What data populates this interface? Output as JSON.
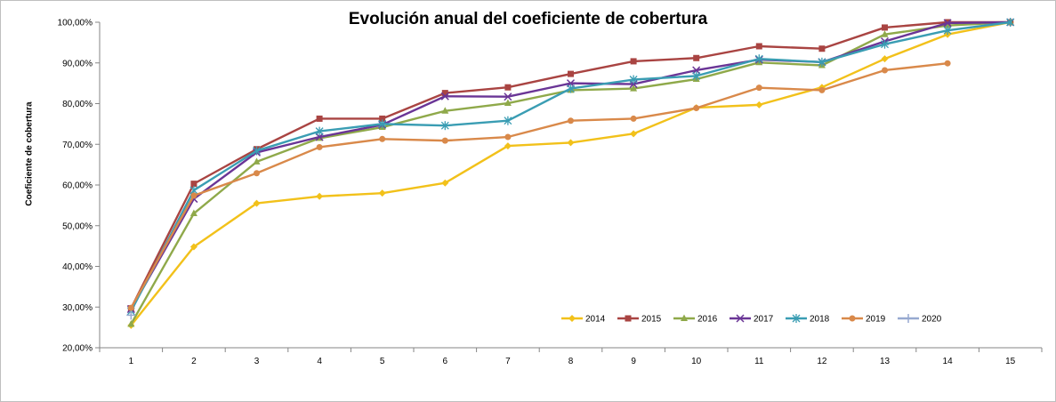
{
  "chart_data": {
    "type": "line",
    "title": "Evolución anual del coeficiente de cobertura",
    "xlabel": "",
    "ylabel": "Coeficiente de cobertura",
    "x": [
      1,
      2,
      3,
      4,
      5,
      6,
      7,
      8,
      9,
      10,
      11,
      12,
      13,
      14,
      15
    ],
    "x_tick_labels": [
      "1",
      "2",
      "3",
      "4",
      "5",
      "6",
      "7",
      "8",
      "9",
      "10",
      "11",
      "12",
      "13",
      "14",
      "15"
    ],
    "y_tick_labels": [
      "20,00%",
      "30,00%",
      "40,00%",
      "50,00%",
      "60,00%",
      "70,00%",
      "80,00%",
      "90,00%",
      "100,00%"
    ],
    "y_ticks": [
      20,
      30,
      40,
      50,
      60,
      70,
      80,
      90,
      100
    ],
    "ylim": [
      20,
      100
    ],
    "y_unit": "percent",
    "grid": false,
    "legend_position": "bottom-right",
    "series": [
      {
        "name": "2014",
        "color": "#F2C11A",
        "marker": "diamond",
        "values": [
          25.5,
          44.8,
          55.5,
          57.2,
          58.0,
          60.5,
          69.6,
          70.4,
          72.6,
          79.0,
          79.7,
          84.0,
          91.0,
          97.0,
          100.0
        ]
      },
      {
        "name": "2015",
        "color": "#A94442",
        "marker": "square",
        "values": [
          29.7,
          60.3,
          68.8,
          76.3,
          76.3,
          82.6,
          84.0,
          87.3,
          90.4,
          91.2,
          94.1,
          93.5,
          98.7,
          100.0,
          100.0
        ]
      },
      {
        "name": "2016",
        "color": "#8FA94A",
        "marker": "triangle",
        "values": [
          25.8,
          53.0,
          65.7,
          71.5,
          74.2,
          78.2,
          80.1,
          83.3,
          83.7,
          86.0,
          90.1,
          89.4,
          97.0,
          99.2,
          100.0
        ]
      },
      {
        "name": "2017",
        "color": "#6A3596",
        "marker": "x",
        "values": [
          29.5,
          56.6,
          68.0,
          71.8,
          74.8,
          81.8,
          81.7,
          85.0,
          84.8,
          88.2,
          90.8,
          90.2,
          95.3,
          99.8,
          100.0
        ]
      },
      {
        "name": "2018",
        "color": "#3A9DB3",
        "marker": "star",
        "values": [
          29.0,
          58.7,
          68.4,
          73.2,
          75.0,
          74.6,
          75.8,
          83.7,
          85.9,
          86.8,
          91.0,
          90.2,
          94.6,
          98.0,
          100.0
        ]
      },
      {
        "name": "2019",
        "color": "#D9894A",
        "marker": "circle",
        "values": [
          29.8,
          57.4,
          62.9,
          69.3,
          71.3,
          70.9,
          71.8,
          75.8,
          76.3,
          78.9,
          83.9,
          83.3,
          88.2,
          89.9,
          null
        ]
      },
      {
        "name": "2020",
        "color": "#97A9D0",
        "marker": "plus",
        "values": [
          28.0,
          null,
          null,
          null,
          null,
          null,
          null,
          null,
          null,
          null,
          null,
          null,
          null,
          null,
          null
        ]
      }
    ]
  }
}
